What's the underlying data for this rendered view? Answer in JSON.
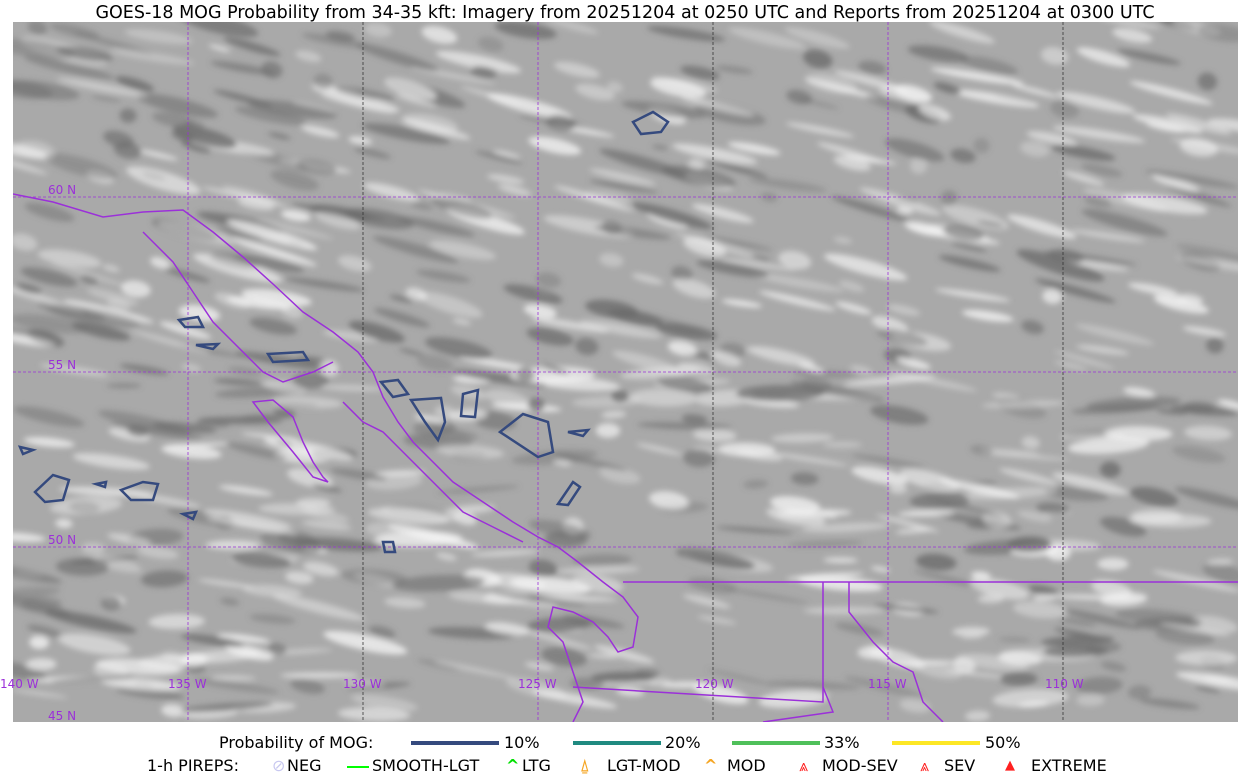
{
  "title": "GOES-18 MOG Probability from 34-35 kft: Imagery from 20251204 at 0250 UTC and Reports from 20251204 at 0300 UTC",
  "map": {
    "lat_labels": [
      "60 N",
      "55 N",
      "50 N",
      "45 N"
    ],
    "lon_labels": [
      "140 W",
      "135 W",
      "130 W",
      "125 W",
      "120 W",
      "115 W",
      "110 W"
    ],
    "grid_color": "#9b30d9",
    "coast_color": "#9b30d9",
    "contour_color": "#354a7e"
  },
  "legend": {
    "prob_title": "Probability of MOG:",
    "prob_items": [
      {
        "label": "10%",
        "color": "#354a7e"
      },
      {
        "label": "20%",
        "color": "#1f8a80"
      },
      {
        "label": "33%",
        "color": "#4fc05a"
      },
      {
        "label": "50%",
        "color": "#fde725"
      }
    ],
    "pirep_title": "1-h PIREPS:",
    "pirep_items": [
      {
        "label": "NEG",
        "icon": "neg-circle-icon",
        "color": "#c8c8f0"
      },
      {
        "label": "SMOOTH-LGT",
        "icon": "line-icon",
        "color": "#00ff00"
      },
      {
        "label": "LTG",
        "icon": "caret-icon",
        "color": "#00e000"
      },
      {
        "label": "LGT-MOD",
        "icon": "caret-bar-icon",
        "color": "#f5a623"
      },
      {
        "label": "MOD",
        "icon": "caret-icon",
        "color": "#f5a623"
      },
      {
        "label": "MOD-SEV",
        "icon": "double-caret-bar-icon",
        "color": "#ff2020"
      },
      {
        "label": "SEV",
        "icon": "double-caret-icon",
        "color": "#ff2020"
      },
      {
        "label": "EXTREME",
        "icon": "filled-triangle-icon",
        "color": "#ff2020"
      }
    ]
  }
}
